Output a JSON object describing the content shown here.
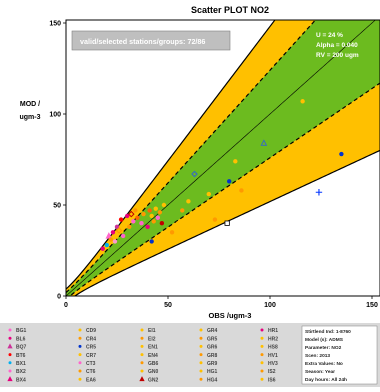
{
  "chart_data": {
    "type": "scatter",
    "title": "Scatter PLOT  NO2",
    "xlabel": "OBS /ugm-3",
    "ylabel_line1": "MOD /",
    "ylabel_line2": "ugm-3",
    "xlim": [
      0,
      155
    ],
    "ylim": [
      0,
      155
    ],
    "x_ticks": [
      0,
      50,
      100,
      150
    ],
    "y_ticks": [
      0,
      50,
      100,
      150
    ],
    "stations_box": "valid/selected stations/groups: 72/86",
    "stats": {
      "u": "U = 24 %",
      "alpha": "Alpha = 0.040",
      "rv": "RV = 200 ugm"
    },
    "colors": {
      "green": "#6cbb1f",
      "orange": "#ffc000",
      "background": "#ffffff",
      "legend_bg": "#d9d9d9"
    },
    "bands": {
      "U": 0.24,
      "alpha": 0.04,
      "RV": 200,
      "comment_outer": "orange band = 2x uncertainty",
      "comment_inner": "green band = 1x uncertainty"
    },
    "points": [
      {
        "x": 18,
        "y": 26,
        "c": "#e6007e",
        "m": "circle"
      },
      {
        "x": 20,
        "y": 28,
        "c": "#00b0f0",
        "m": "circle"
      },
      {
        "x": 21,
        "y": 33,
        "c": "#ff66cc",
        "m": "triangle"
      },
      {
        "x": 22,
        "y": 31,
        "c": "#ff9900",
        "m": "circle"
      },
      {
        "x": 23,
        "y": 35,
        "c": "#e6007e",
        "m": "circle"
      },
      {
        "x": 24,
        "y": 30,
        "c": "#ff99cc",
        "m": "circle"
      },
      {
        "x": 25,
        "y": 38,
        "c": "#cc3399",
        "m": "circle"
      },
      {
        "x": 26,
        "y": 36,
        "c": "#ff9900",
        "m": "diamond"
      },
      {
        "x": 27,
        "y": 42,
        "c": "#ff0000",
        "m": "circle"
      },
      {
        "x": 28,
        "y": 33,
        "c": "#ff66cc",
        "m": "circle"
      },
      {
        "x": 29,
        "y": 40,
        "c": "#ffc000",
        "m": "circle"
      },
      {
        "x": 30,
        "y": 44,
        "c": "#e6007e",
        "m": "circle"
      },
      {
        "x": 31,
        "y": 38,
        "c": "#ff9900",
        "m": "circle"
      },
      {
        "x": 32,
        "y": 45,
        "c": "#c00000",
        "m": "diamond"
      },
      {
        "x": 33,
        "y": 41,
        "c": "#ff66cc",
        "m": "circle"
      },
      {
        "x": 34,
        "y": 47,
        "c": "#ff9900",
        "m": "circle"
      },
      {
        "x": 35,
        "y": 43,
        "c": "#ff6600",
        "m": "circle"
      },
      {
        "x": 36,
        "y": 49,
        "c": "#ffc000",
        "m": "circle"
      },
      {
        "x": 37,
        "y": 40,
        "c": "#ff66cc",
        "m": "circle"
      },
      {
        "x": 38,
        "y": 45,
        "c": "#ff9900",
        "m": "circle"
      },
      {
        "x": 39,
        "y": 51,
        "c": "#ffc000",
        "m": "circle"
      },
      {
        "x": 40,
        "y": 38,
        "c": "#e6007e",
        "m": "circle"
      },
      {
        "x": 41,
        "y": 47,
        "c": "#ff6600",
        "m": "circle"
      },
      {
        "x": 42,
        "y": 44,
        "c": "#ffc000",
        "m": "circle"
      },
      {
        "x": 43,
        "y": 41,
        "c": "#ff9900",
        "m": "circle"
      },
      {
        "x": 44,
        "y": 48,
        "c": "#ffc000",
        "m": "circle"
      },
      {
        "x": 45,
        "y": 43,
        "c": "#ff66cc",
        "m": "circle"
      },
      {
        "x": 46,
        "y": 46,
        "c": "#ff9900",
        "m": "circle"
      },
      {
        "x": 47,
        "y": 40,
        "c": "#c00000",
        "m": "circle"
      },
      {
        "x": 48,
        "y": 50,
        "c": "#ffc000",
        "m": "circle"
      },
      {
        "x": 42,
        "y": 30,
        "c": "#0033cc",
        "m": "circle"
      },
      {
        "x": 52,
        "y": 35,
        "c": "#ff9900",
        "m": "circle"
      },
      {
        "x": 55,
        "y": 40,
        "c": "#ffc000",
        "m": "circle"
      },
      {
        "x": 57,
        "y": 47,
        "c": "#ff9900",
        "m": "circle"
      },
      {
        "x": 60,
        "y": 52,
        "c": "#ffc000",
        "m": "circle"
      },
      {
        "x": 63,
        "y": 67,
        "c": "#3366cc",
        "m": "diamond"
      },
      {
        "x": 70,
        "y": 56,
        "c": "#ffc000",
        "m": "circle"
      },
      {
        "x": 73,
        "y": 42,
        "c": "#ff9900",
        "m": "circle"
      },
      {
        "x": 76,
        "y": 48,
        "c": "#ffc000",
        "m": "circle"
      },
      {
        "x": 80,
        "y": 63,
        "c": "#0033cc",
        "m": "circle"
      },
      {
        "x": 79,
        "y": 40,
        "c": "#ffffff",
        "m": "square"
      },
      {
        "x": 83,
        "y": 74,
        "c": "#ffc000",
        "m": "circle"
      },
      {
        "x": 86,
        "y": 58,
        "c": "#ff9900",
        "m": "circle"
      },
      {
        "x": 97,
        "y": 84,
        "c": "#3366cc",
        "m": "triangle"
      },
      {
        "x": 106,
        "y": 62,
        "c": "#ffc000",
        "m": "circle"
      },
      {
        "x": 124,
        "y": 57,
        "c": "#0033ff",
        "m": "plus"
      },
      {
        "x": 135,
        "y": 78,
        "c": "#0033cc",
        "m": "circle"
      },
      {
        "x": 116,
        "y": 107,
        "c": "#ffc000",
        "m": "circle"
      }
    ]
  },
  "legend": {
    "columns": [
      [
        {
          "t": "BG1",
          "c": "#ff66cc",
          "m": "circle"
        },
        {
          "t": "BL6",
          "c": "#e6007e",
          "m": "circle"
        },
        {
          "t": "BQ7",
          "c": "#cc3399",
          "m": "triangle"
        },
        {
          "t": "BT6",
          "c": "#ff0000",
          "m": "circle"
        },
        {
          "t": "BX1",
          "c": "#00b0f0",
          "m": "circle"
        },
        {
          "t": "BX2",
          "c": "#ff66cc",
          "m": "circle"
        },
        {
          "t": "BX4",
          "c": "#e6007e",
          "m": "triangle"
        }
      ],
      [
        {
          "t": "CD9",
          "c": "#ffc000",
          "m": "circle"
        },
        {
          "t": "CR4",
          "c": "#ff9900",
          "m": "circle"
        },
        {
          "t": "CR5",
          "c": "#0033cc",
          "m": "circle"
        },
        {
          "t": "CR7",
          "c": "#ffc000",
          "m": "circle"
        },
        {
          "t": "CT3",
          "c": "#ff66cc",
          "m": "circle"
        },
        {
          "t": "CT6",
          "c": "#ff9900",
          "m": "circle"
        },
        {
          "t": "EA6",
          "c": "#ffc000",
          "m": "circle"
        }
      ],
      [
        {
          "t": "EI1",
          "c": "#ffc000",
          "m": "circle"
        },
        {
          "t": "EI2",
          "c": "#ff9900",
          "m": "circle"
        },
        {
          "t": "EN1",
          "c": "#ffc000",
          "m": "circle"
        },
        {
          "t": "EN4",
          "c": "#ffc000",
          "m": "circle"
        },
        {
          "t": "GB6",
          "c": "#ff9900",
          "m": "circle"
        },
        {
          "t": "GN0",
          "c": "#ffc000",
          "m": "circle"
        },
        {
          "t": "GN2",
          "c": "#c00000",
          "m": "triangle"
        }
      ],
      [
        {
          "t": "GR4",
          "c": "#ffc000",
          "m": "circle"
        },
        {
          "t": "GR5",
          "c": "#ff9900",
          "m": "circle"
        },
        {
          "t": "GR6",
          "c": "#ffc000",
          "m": "circle"
        },
        {
          "t": "GR8",
          "c": "#ff9900",
          "m": "circle"
        },
        {
          "t": "GR9",
          "c": "#ffc000",
          "m": "circle"
        },
        {
          "t": "HG1",
          "c": "#ffc000",
          "m": "circle"
        },
        {
          "t": "HG4",
          "c": "#ff9900",
          "m": "circle"
        }
      ],
      [
        {
          "t": "HR1",
          "c": "#e6007e",
          "m": "circle"
        },
        {
          "t": "HR2",
          "c": "#ffc000",
          "m": "circle"
        },
        {
          "t": "HS8",
          "c": "#ffc000",
          "m": "circle"
        },
        {
          "t": "HV1",
          "c": "#ff9900",
          "m": "circle"
        },
        {
          "t": "HV3",
          "c": "#ffc000",
          "m": "circle"
        },
        {
          "t": "IS2",
          "c": "#ff9900",
          "m": "circle"
        },
        {
          "t": "IS6",
          "c": "#ffc000",
          "m": "circle"
        }
      ]
    ],
    "info": [
      "Stirtlend Ind: 1-8760",
      "Model (s): ADMS",
      "Parameter: NO2",
      "Scen: 2013",
      "Extra Values: No",
      "Season: Year",
      "Day hours: All 24h"
    ]
  }
}
